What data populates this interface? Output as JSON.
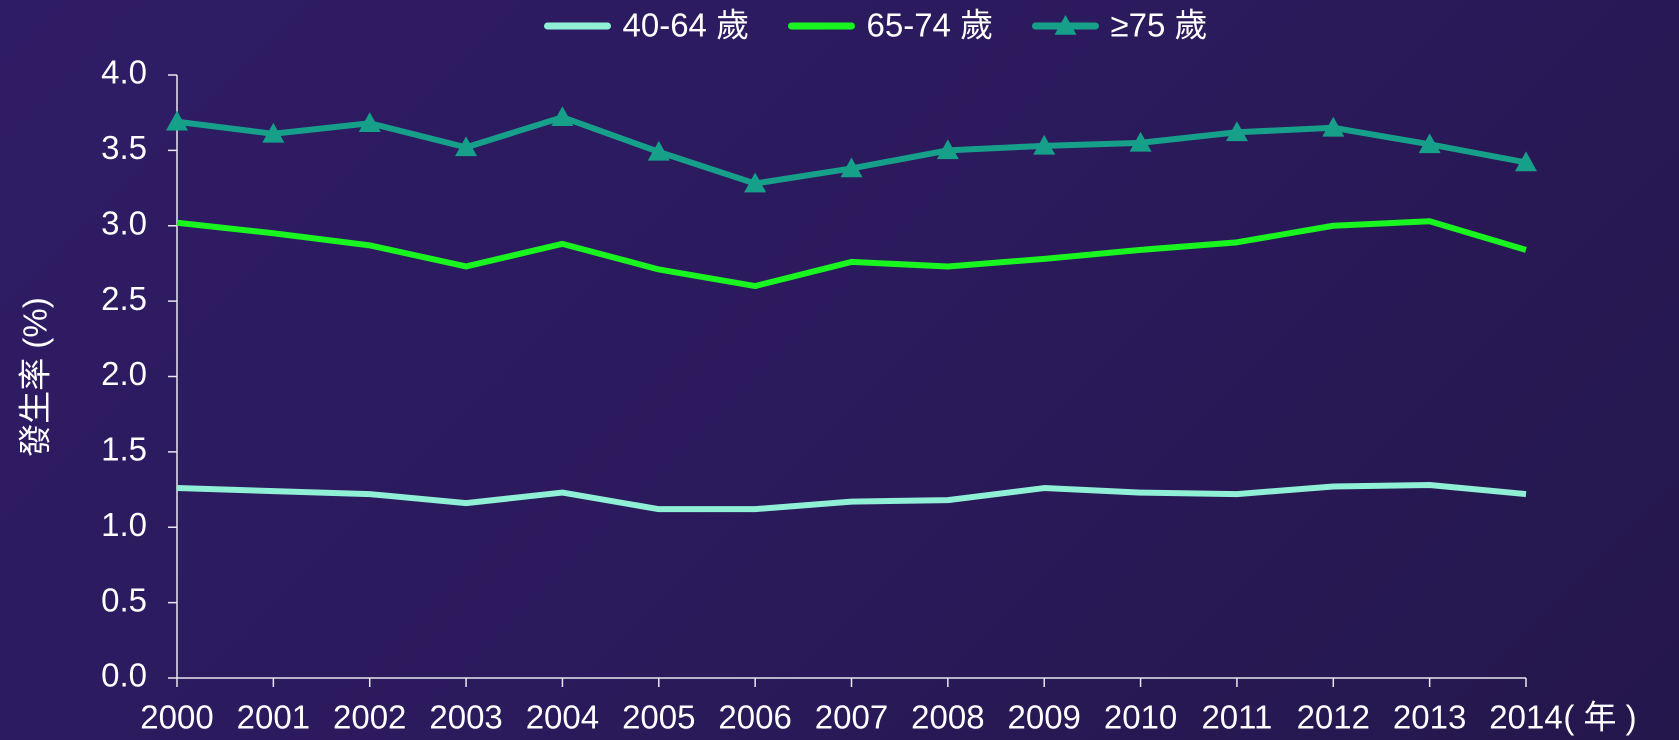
{
  "chart_data": {
    "type": "line",
    "y_label": "發生率 (%)",
    "x_label": "( 年 )",
    "x": [
      2000,
      2001,
      2002,
      2003,
      2004,
      2005,
      2006,
      2007,
      2008,
      2009,
      2010,
      2011,
      2012,
      2013,
      2014
    ],
    "xlim": [
      2000,
      2014
    ],
    "xticks": [
      2000,
      2001,
      2002,
      2003,
      2004,
      2005,
      2006,
      2007,
      2008,
      2009,
      2010,
      2011,
      2012,
      2013,
      2014
    ],
    "ylim": [
      0,
      4
    ],
    "yticks": [
      {
        "value": 0,
        "label": "0.0"
      },
      0.5,
      {
        "value": 1,
        "label": "1.0"
      },
      1.5,
      {
        "value": 2,
        "label": "2.0"
      },
      2.5,
      {
        "value": 3,
        "label": "3.0"
      },
      3.5,
      {
        "value": 4,
        "label": "4.0"
      }
    ],
    "legend": "top",
    "series": [
      {
        "name": "40-64 歲",
        "color": "#8ff0d6",
        "values": [
          1.26,
          1.24,
          1.22,
          1.16,
          1.23,
          1.12,
          1.12,
          1.17,
          1.18,
          1.26,
          1.23,
          1.22,
          1.27,
          1.28,
          1.22
        ]
      },
      {
        "name": "65-74 歲",
        "color": "#19f51e",
        "values": [
          3.02,
          2.95,
          2.87,
          2.73,
          2.88,
          2.71,
          2.6,
          2.76,
          2.73,
          2.78,
          2.84,
          2.89,
          3.0,
          3.03,
          2.84
        ]
      },
      {
        "name": "≥75 歲",
        "color": "#16a08a",
        "marker": "triangle",
        "values": [
          3.69,
          3.61,
          3.68,
          3.52,
          3.72,
          3.49,
          3.28,
          3.38,
          3.5,
          3.53,
          3.55,
          3.62,
          3.65,
          3.54,
          3.42
        ]
      }
    ]
  }
}
